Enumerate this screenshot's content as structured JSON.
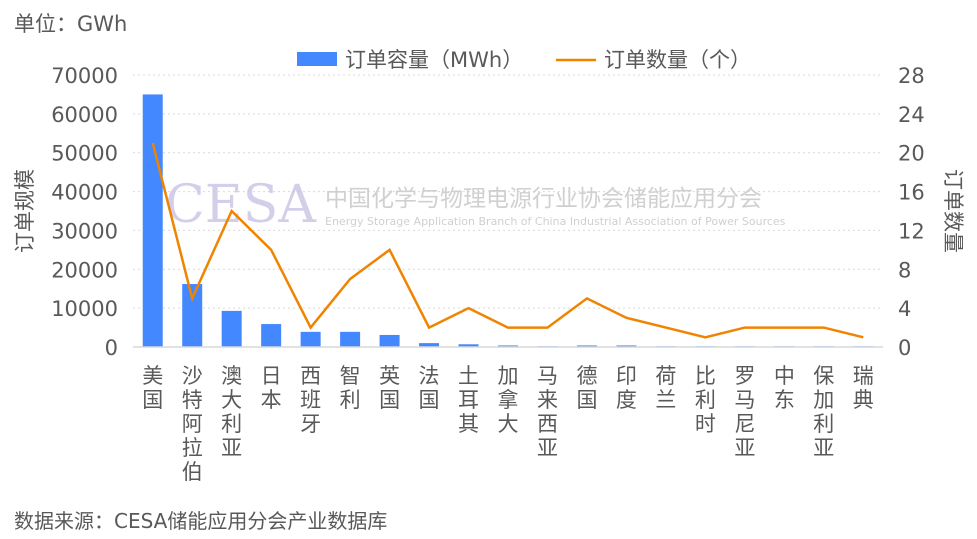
{
  "unit_label": "单位：GWh",
  "source": "数据来源：CESA储能应用分会产业数据库",
  "watermark": {
    "logo": "CESA",
    "cn": "中国化学与物理电源行业协会储能应用分会",
    "en": "Energy Storage Application Branch of China Industrial Association of Power Sources"
  },
  "colors": {
    "bar": "#4488FF",
    "line": "#F08400"
  },
  "chart_data": {
    "type": "bar+line",
    "categories": [
      "美国",
      "沙特阿拉伯",
      "澳大利亚",
      "日本",
      "西班牙",
      "智利",
      "英国",
      "法国",
      "土耳其",
      "加拿大",
      "马来西亚",
      "德国",
      "印度",
      "荷兰",
      "比利时",
      "罗马尼亚",
      "中东",
      "保加利亚",
      "瑞典"
    ],
    "series": [
      {
        "name": "订单容量（MWh）",
        "type": "bar",
        "axis": "left",
        "values": [
          65000,
          16200,
          9300,
          5900,
          3900,
          3900,
          3100,
          1000,
          700,
          400,
          200,
          400,
          400,
          200,
          200,
          200,
          200,
          200,
          200
        ]
      },
      {
        "name": "订单数量（个）",
        "type": "line",
        "axis": "right",
        "values": [
          21,
          5,
          14,
          10,
          2,
          7,
          10,
          2,
          4,
          2,
          2,
          5,
          3,
          2,
          1,
          2,
          2,
          2,
          1
        ]
      }
    ],
    "ylabel": "订单规模",
    "y2label": "订单数量",
    "ylim": [
      0,
      70000
    ],
    "yticks": [
      0,
      10000,
      20000,
      30000,
      40000,
      50000,
      60000,
      70000
    ],
    "y2lim": [
      0,
      28
    ],
    "y2ticks": [
      0,
      4,
      8,
      12,
      16,
      20,
      24,
      28
    ],
    "grid": true,
    "legend": "top"
  }
}
